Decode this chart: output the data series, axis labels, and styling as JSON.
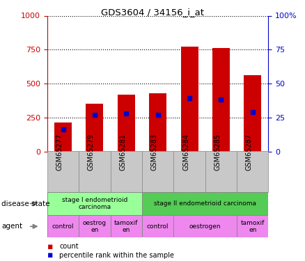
{
  "title": "GDS3604 / 34156_i_at",
  "samples": [
    "GSM65277",
    "GSM65279",
    "GSM65281",
    "GSM65283",
    "GSM65284",
    "GSM65285",
    "GSM65287"
  ],
  "count_values": [
    215,
    350,
    420,
    430,
    770,
    760,
    560
  ],
  "percentile_values": [
    16,
    27,
    28,
    27,
    39,
    38,
    29
  ],
  "ylim_left": [
    0,
    1000
  ],
  "ylim_right": [
    0,
    100
  ],
  "yticks_left": [
    0,
    250,
    500,
    750,
    1000
  ],
  "yticks_right": [
    0,
    25,
    50,
    75,
    100
  ],
  "ytick_right_labels": [
    "0",
    "25",
    "50",
    "75",
    "100%"
  ],
  "bar_color": "#cc0000",
  "percentile_color": "#0000cc",
  "background_color": "#ffffff",
  "disease_state_groups": [
    {
      "label": "stage I endometrioid\ncarcinoma",
      "start": 0,
      "end": 3,
      "color": "#99ff99"
    },
    {
      "label": "stage II endometrioid carcinoma",
      "start": 3,
      "end": 7,
      "color": "#55cc55"
    }
  ],
  "agent_groups": [
    {
      "label": "control",
      "start": 0,
      "end": 1,
      "color": "#ee88ee"
    },
    {
      "label": "oestrog\nen",
      "start": 1,
      "end": 2,
      "color": "#ee88ee"
    },
    {
      "label": "tamoxif\nen",
      "start": 2,
      "end": 3,
      "color": "#ee88ee"
    },
    {
      "label": "control",
      "start": 3,
      "end": 4,
      "color": "#ee88ee"
    },
    {
      "label": "oestrogen",
      "start": 4,
      "end": 6,
      "color": "#ee88ee"
    },
    {
      "label": "tamoxif\nen",
      "start": 6,
      "end": 7,
      "color": "#ee88ee"
    }
  ],
  "legend_count_label": "count",
  "legend_percentile_label": "percentile rank within the sample",
  "disease_state_label": "disease state",
  "agent_label": "agent",
  "tick_color_left": "#cc0000",
  "tick_color_right": "#0000cc",
  "grid_color": "#000000",
  "bar_width": 0.55,
  "xtick_bg": "#c8c8c8",
  "xtick_border": "#888888"
}
